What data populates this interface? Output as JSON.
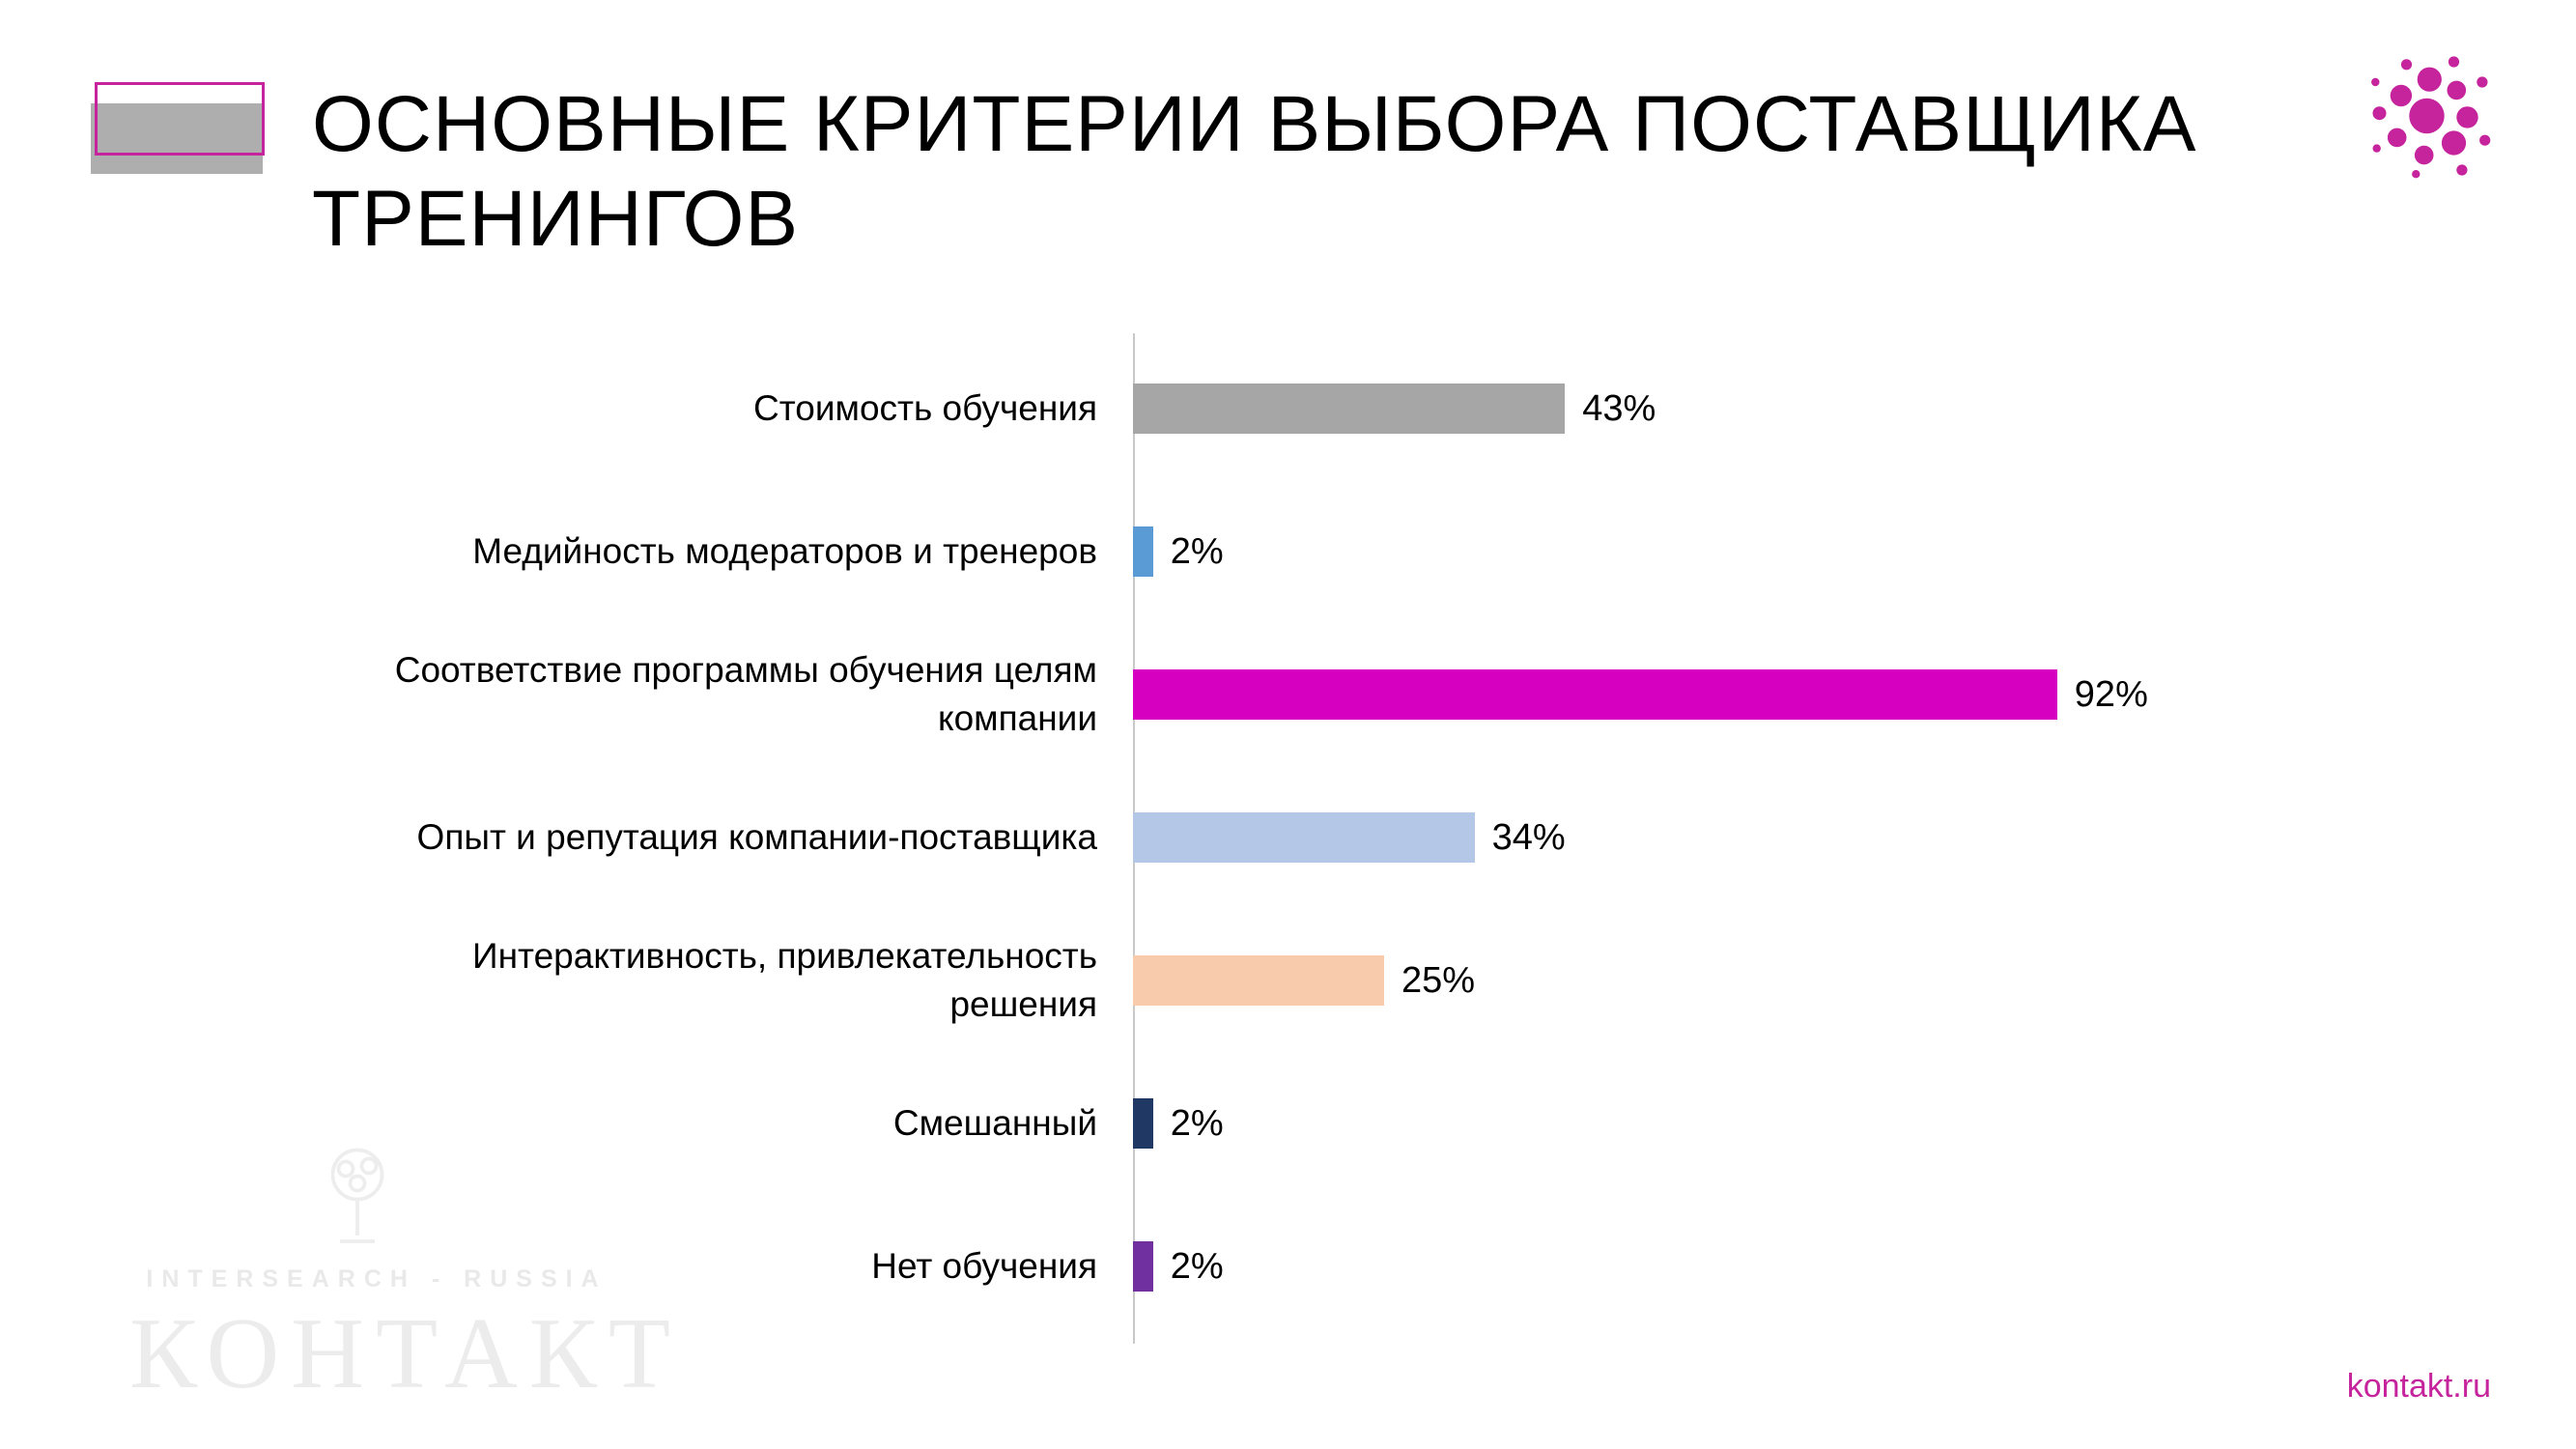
{
  "page": {
    "title": "ОСНОВНЫЕ КРИТЕРИИ ВЫБОРА ПОСТАВЩИКА ТРЕНИНГОВ",
    "footer_link": "kontakt.ru",
    "watermark": {
      "line1": "INTERSEARCH - RUSSIA",
      "line2": "КОНТАКТ"
    }
  },
  "theme": {
    "accent": "#c6249c",
    "axis_color": "#c9c9c9",
    "deco_gray": "#aeaeae"
  },
  "chart_data": {
    "type": "bar",
    "orientation": "horizontal",
    "title": "ОСНОВНЫЕ КРИТЕРИИ ВЫБОРА ПОСТАВЩИКА ТРЕНИНГОВ",
    "value_suffix": "%",
    "xlim": [
      0,
      100
    ],
    "grid": false,
    "legend": false,
    "categories": [
      "Стоимость обучения",
      "Медийность модераторов и тренеров",
      "Соответствие программы обучения целям компании",
      "Опыт и репутация компании-поставщика",
      "Интерактивность, привлекательность решения",
      "Смешанный",
      "Нет обучения"
    ],
    "values": [
      43,
      2,
      92,
      34,
      25,
      2,
      2
    ],
    "items": [
      {
        "label": "Стоимость обучения",
        "value": 43,
        "color": "#a6a6a6"
      },
      {
        "label": "Медийность модераторов и тренеров",
        "value": 2,
        "color": "#5b9bd5"
      },
      {
        "label": "Соответствие программы обучения целям\nкомпании",
        "value": 92,
        "color": "#d600c0"
      },
      {
        "label": "Опыт и репутация компании-поставщика",
        "value": 34,
        "color": "#b4c7e7"
      },
      {
        "label": "Интерактивность, привлекательность\nрешения",
        "value": 25,
        "color": "#f8cbad"
      },
      {
        "label": "Смешанный",
        "value": 2,
        "color": "#1f3864"
      },
      {
        "label": "Нет обучения",
        "value": 2,
        "color": "#7030a0"
      }
    ]
  }
}
